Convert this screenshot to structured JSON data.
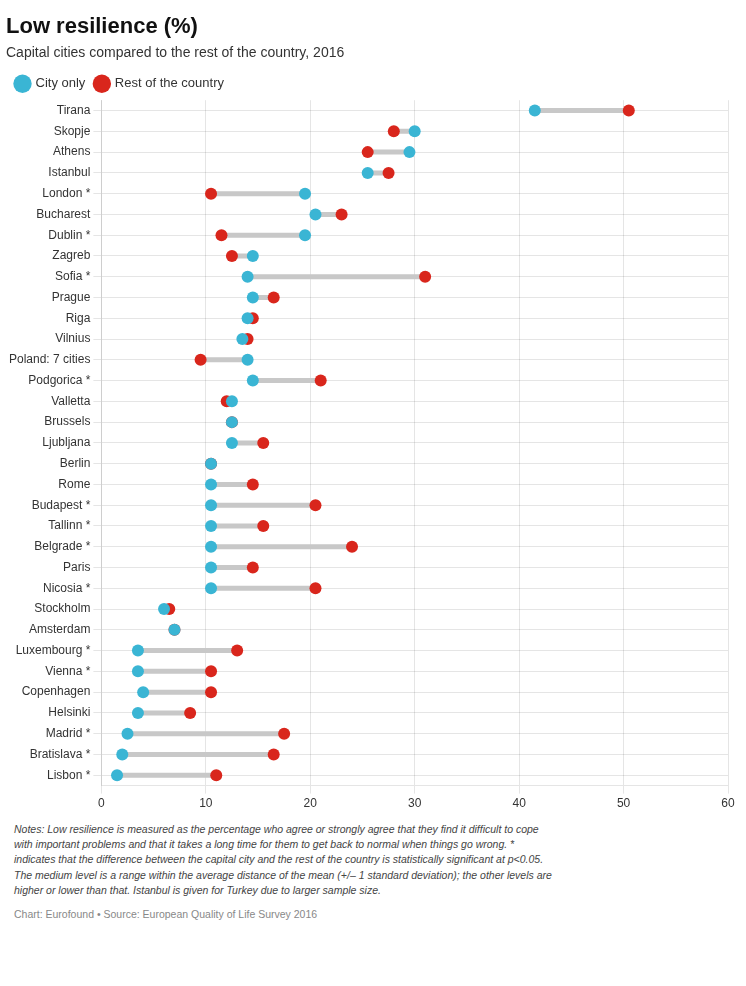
{
  "chart_data": {
    "type": "dumbbell",
    "title": "Low resilience (%)",
    "subtitle": "Capital cities compared to the rest of the country, 2016",
    "categories": [
      "Tirana",
      "Skopje",
      "Athens",
      "Istanbul",
      "London *",
      "Bucharest",
      "Dublin *",
      "Zagreb",
      "Sofia *",
      "Prague",
      "Riga",
      "Vilnius",
      "Poland: 7 cities",
      "Podgorica *",
      "Valletta",
      "Brussels",
      "Ljubljana",
      "Berlin",
      "Rome",
      "Budapest *",
      "Tallinn *",
      "Belgrade *",
      "Paris",
      "Nicosia *",
      "Stockholm",
      "Amsterdam",
      "Luxembourg *",
      "Vienna *",
      "Copenhagen",
      "Helsinki",
      "Madrid *",
      "Bratislava *",
      "Lisbon *"
    ],
    "series": [
      {
        "name": "Rest of the country",
        "color": "#d9261c",
        "values": [
          50.5,
          28.0,
          25.5,
          27.5,
          10.5,
          23.0,
          11.5,
          12.5,
          31.0,
          16.5,
          14.5,
          14.0,
          9.5,
          21.0,
          12.0,
          12.5,
          15.5,
          10.5,
          14.5,
          20.5,
          15.5,
          24.0,
          14.5,
          20.5,
          6.5,
          7.0,
          13.0,
          10.5,
          10.5,
          8.5,
          17.5,
          16.5,
          11.0
        ]
      },
      {
        "name": "City only",
        "color": "#3ab5d4",
        "values": [
          41.5,
          30.0,
          29.5,
          25.5,
          19.5,
          20.5,
          19.5,
          14.5,
          14.0,
          14.5,
          14.0,
          13.5,
          14.0,
          14.5,
          12.5,
          12.5,
          12.5,
          10.5,
          10.5,
          10.5,
          10.5,
          10.5,
          10.5,
          10.5,
          6.0,
          7.0,
          3.5,
          3.5,
          4.0,
          3.5,
          2.5,
          2.0,
          1.5
        ]
      }
    ],
    "color": "#c8c8c8",
    "xlim": [
      0,
      60
    ],
    "xticks": [
      0,
      10,
      20,
      30,
      40,
      50,
      60
    ],
    "grid": true,
    "legend": "top",
    "annotations": [
      "Notes: Low resilience is measured as the percentage who agree or strongly agree that they find it difficult to cope",
      "with important problems and that it takes a long time for them to get back to normal when things go wrong. *",
      "indicates that the difference between the capital city and the rest of the country is statistically significant at p<0.05.",
      "The medium level is a range within the average distance of the mean (+/– 1 standard deviation); the other levels are",
      "higher or lower than that. Istanbul is given for Turkey due to larger sample size.",
      "Chart: Eurofound • Source: European Quality of Life Survey 2016"
    ]
  }
}
